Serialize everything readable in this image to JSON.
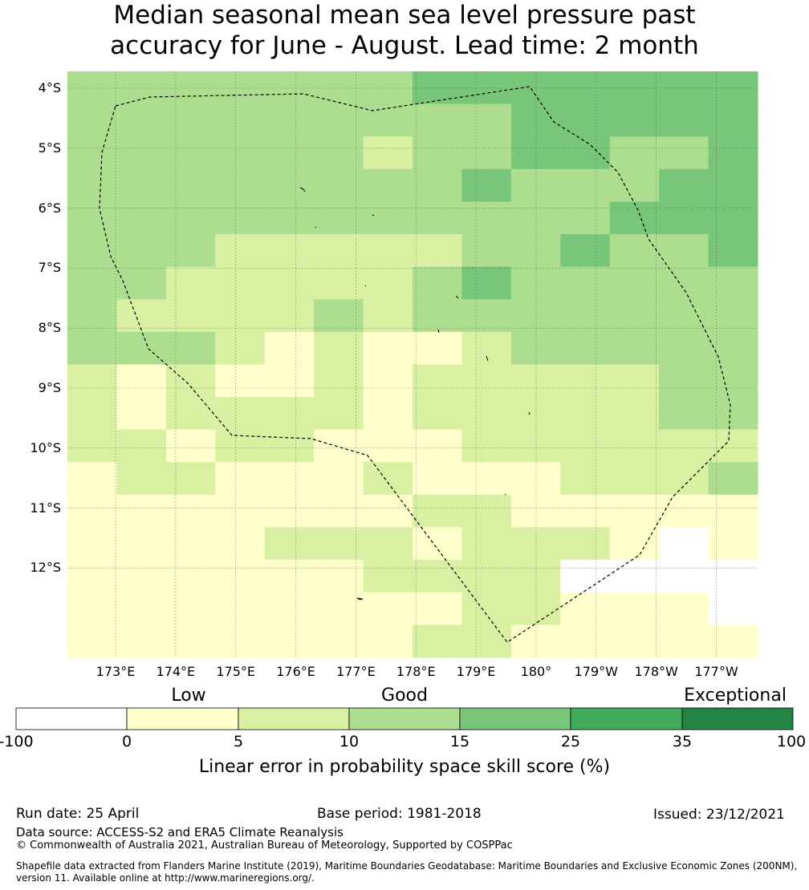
{
  "title_line1": "Median seasonal mean sea level pressure past",
  "title_line2": "accuracy for June - August. Lead time: 2 month",
  "map": {
    "lat_labels": [
      "4°S",
      "5°S",
      "6°S",
      "7°S",
      "8°S",
      "9°S",
      "10°S",
      "11°S",
      "12°S"
    ],
    "lon_labels": [
      "173°E",
      "174°E",
      "175°E",
      "176°E",
      "177°E",
      "178°E",
      "179°E",
      "180°",
      "179°W",
      "178°W",
      "177°W"
    ],
    "grid_levels": [
      [
        3,
        3,
        3,
        3,
        3,
        3,
        3,
        4,
        4,
        4,
        4,
        4,
        4,
        4
      ],
      [
        3,
        3,
        3,
        3,
        3,
        3,
        3,
        3,
        3,
        4,
        4,
        4,
        4,
        4
      ],
      [
        3,
        3,
        3,
        3,
        3,
        3,
        2,
        3,
        3,
        4,
        4,
        3,
        3,
        4
      ],
      [
        3,
        3,
        3,
        3,
        3,
        3,
        3,
        3,
        4,
        3,
        3,
        3,
        4,
        4
      ],
      [
        3,
        3,
        3,
        3,
        3,
        3,
        3,
        3,
        3,
        3,
        3,
        4,
        4,
        4
      ],
      [
        3,
        3,
        3,
        2,
        2,
        2,
        2,
        2,
        3,
        3,
        4,
        3,
        3,
        4
      ],
      [
        3,
        3,
        2,
        2,
        2,
        2,
        2,
        3,
        4,
        3,
        3,
        3,
        3,
        3
      ],
      [
        3,
        2,
        2,
        2,
        2,
        3,
        2,
        3,
        3,
        3,
        3,
        3,
        3,
        3
      ],
      [
        3,
        3,
        3,
        2,
        1,
        2,
        1,
        1,
        2,
        3,
        3,
        3,
        3,
        3
      ],
      [
        2,
        1,
        2,
        1,
        1,
        2,
        1,
        2,
        2,
        2,
        2,
        2,
        3,
        3
      ],
      [
        2,
        1,
        2,
        2,
        2,
        2,
        1,
        2,
        2,
        2,
        2,
        2,
        3,
        3
      ],
      [
        2,
        2,
        1,
        2,
        2,
        1,
        1,
        1,
        2,
        2,
        2,
        2,
        2,
        2
      ],
      [
        1,
        2,
        2,
        1,
        1,
        1,
        2,
        1,
        1,
        1,
        2,
        2,
        2,
        3
      ],
      [
        1,
        1,
        1,
        1,
        1,
        1,
        1,
        2,
        2,
        1,
        1,
        1,
        1,
        1
      ],
      [
        1,
        1,
        1,
        1,
        2,
        2,
        2,
        1,
        2,
        2,
        2,
        1,
        0,
        1
      ],
      [
        1,
        1,
        1,
        1,
        1,
        1,
        2,
        2,
        2,
        2,
        0,
        0,
        0,
        0
      ],
      [
        1,
        1,
        1,
        1,
        1,
        1,
        1,
        1,
        2,
        2,
        1,
        1,
        1,
        0
      ],
      [
        1,
        1,
        1,
        1,
        1,
        1,
        1,
        2,
        2,
        1,
        1,
        1,
        1,
        1
      ]
    ]
  },
  "legend": {
    "categories": [
      "Low",
      "Good",
      "Exceptional"
    ],
    "ticks": [
      "-100",
      "0",
      "5",
      "10",
      "15",
      "25",
      "35",
      "100"
    ],
    "colors": [
      "#ffffff",
      "#ffffcc",
      "#d9f0a3",
      "#addd8e",
      "#78c679",
      "#41ab5d",
      "#238443"
    ],
    "label": "Linear error in probability space skill score (%)"
  },
  "footer": {
    "run_date": "Run date: 25 April",
    "base_period": "Base period: 1981-2018",
    "issued": "Issued: 23/12/2021",
    "data_source": "Data source: ACCESS-S2 and ERA5 Climate Reanalysis",
    "copyright": "© Commonwealth of Australia 2021, Australian Bureau of Meteorology, Supported by COSPPac",
    "shapefile_line1": "Shapefile data extracted from Flanders Marine Institute (2019), Maritime Boundaries Geodatabase: Maritime Boundaries and Exclusive Economic Zones (200NM),",
    "shapefile_line2": "version 11. Available online at http://www.marineregions.org/."
  }
}
